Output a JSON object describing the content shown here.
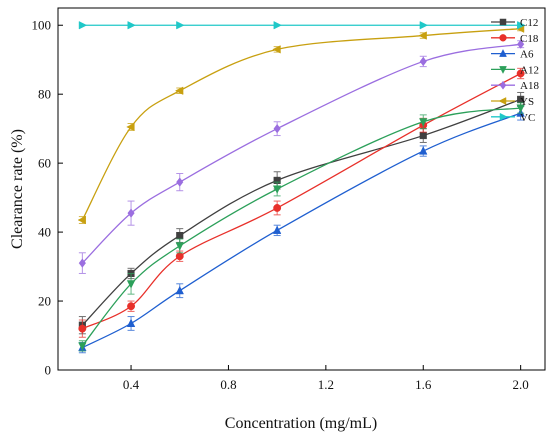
{
  "chart_data": {
    "type": "line",
    "xlabel": "Concentration (mg/mL)",
    "ylabel": "Clearance rate (%)",
    "xlim": [
      0.1,
      2.1
    ],
    "ylim": [
      0,
      105
    ],
    "xticks": [
      "0.4",
      "0.8",
      "1.2",
      "1.6",
      "2.0"
    ],
    "yticks": [
      "0",
      "20",
      "40",
      "60",
      "80",
      "100"
    ],
    "grid": false,
    "legend_position": "top-right",
    "x": [
      0.2,
      0.4,
      0.6,
      1.0,
      1.6,
      2.0
    ],
    "series": [
      {
        "name": "C12",
        "color": "#404040",
        "marker": "square",
        "values": [
          13,
          28,
          39,
          55,
          68,
          78.5
        ],
        "errors": [
          2.5,
          1.5,
          2,
          2.5,
          2,
          2
        ]
      },
      {
        "name": "C18",
        "color": "#e8302a",
        "marker": "circle",
        "values": [
          12,
          18.5,
          33,
          47,
          71,
          86
        ],
        "errors": [
          2.5,
          1.5,
          1.5,
          2,
          2,
          1.5
        ]
      },
      {
        "name": "A6",
        "color": "#1f5fd0",
        "marker": "triangle-up",
        "values": [
          6.5,
          13.5,
          23,
          40.5,
          63.5,
          74.5
        ],
        "errors": [
          1.5,
          2,
          2,
          1.5,
          1.5,
          2
        ]
      },
      {
        "name": "A12",
        "color": "#2ca05a",
        "marker": "triangle-down",
        "values": [
          7,
          25,
          36,
          52.5,
          72,
          76
        ],
        "errors": [
          1.5,
          3,
          2,
          2,
          2,
          1.5
        ]
      },
      {
        "name": "A18",
        "color": "#9b6ee0",
        "marker": "diamond",
        "values": [
          31,
          45.5,
          54.5,
          70,
          89.5,
          94.5
        ],
        "errors": [
          3,
          3.5,
          2.5,
          2,
          1.5,
          1
        ]
      },
      {
        "name": "YS",
        "color": "#c8a010",
        "marker": "triangle-left",
        "values": [
          43.5,
          70.5,
          81,
          93,
          97,
          99
        ],
        "errors": [
          1,
          1,
          0.8,
          0.8,
          0.8,
          0.6
        ]
      },
      {
        "name": "VC",
        "color": "#20c8c8",
        "marker": "triangle-right",
        "values": [
          100,
          100,
          100,
          100,
          100,
          100
        ],
        "errors": [
          0,
          0,
          0,
          0,
          0,
          0
        ]
      }
    ]
  }
}
